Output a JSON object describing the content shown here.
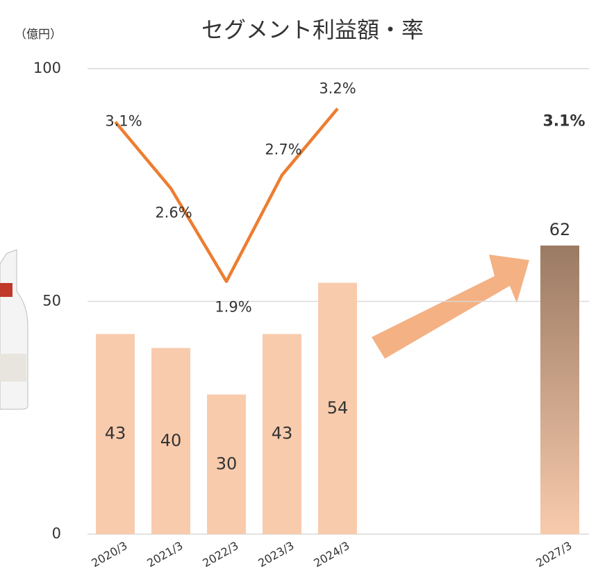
{
  "chart_data": {
    "type": "bar",
    "title": "セグメント利益額・率",
    "y_axis_label": "（億円）",
    "categories": [
      "2020/3",
      "2021/3",
      "2022/3",
      "2023/3",
      "2024/3",
      null,
      null,
      null,
      "2027/3"
    ],
    "values": [
      43,
      40,
      30,
      43,
      54,
      null,
      null,
      null,
      62
    ],
    "color": "#f8cbad",
    "highlight_color": "#9b7a63",
    "ylim": [
      0,
      100
    ],
    "yticks": [
      0,
      50,
      100
    ],
    "grid": true,
    "line": {
      "type": "line",
      "axis": "y2",
      "color": "#ed7d31",
      "values": [
        3.1,
        2.6,
        1.9,
        2.7,
        3.2,
        null,
        null,
        null,
        null
      ],
      "value_labels": [
        "3.1%",
        "2.6%",
        "1.9%",
        "2.7%",
        "3.2%",
        null,
        null,
        null,
        null
      ]
    },
    "y2lim": [
      0,
      3.5
    ],
    "forecast_rate": {
      "value": 3.1,
      "label": "3.1%"
    }
  }
}
